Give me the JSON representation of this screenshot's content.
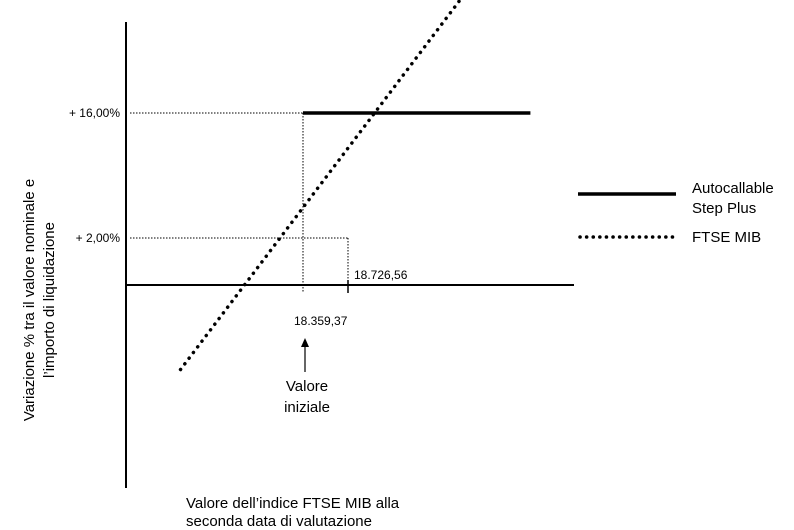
{
  "chart_data": {
    "type": "line",
    "title": "",
    "xlabel": [
      "Valore dell’indice FTSE MIB alla",
      "seconda data di valutazione"
    ],
    "ylabel": [
      "Variazione % tra il valore nominale e",
      "l’importo di liquidazione"
    ],
    "y_ticks": [
      "+ 16,00%",
      "+ 2,00%"
    ],
    "y_tick_values": [
      16.0,
      2.0
    ],
    "x_annotations": [
      {
        "label": "18.359,37",
        "x": 18359.37
      },
      {
        "label": "18.726,56",
        "x": 18726.56
      }
    ],
    "arrow_label": [
      "Valore",
      "iniziale"
    ],
    "grid": false,
    "legend_position": "right",
    "series": [
      {
        "name": [
          "Autocallable",
          "Step Plus"
        ],
        "style": "solid",
        "color": "#000000",
        "points": [
          [
            18359.37,
            16.0
          ],
          [
            20215,
            16.0
          ]
        ]
      },
      {
        "name": [
          "FTSE MIB"
        ],
        "style": "dotted",
        "color": "#000000",
        "points": [
          [
            17360,
            -12.73
          ],
          [
            20670,
            47.33
          ]
        ]
      }
    ]
  }
}
